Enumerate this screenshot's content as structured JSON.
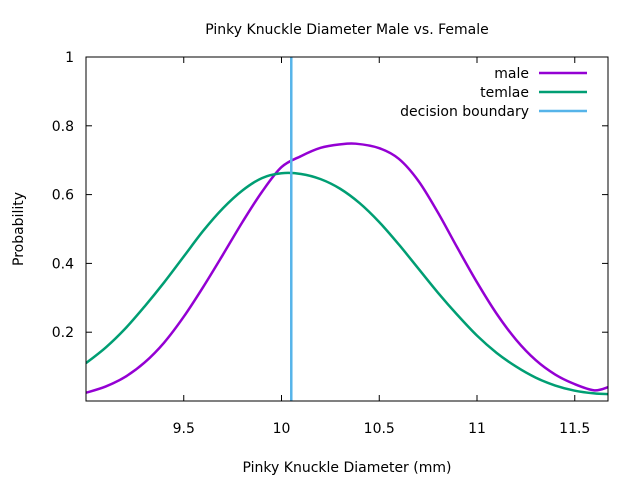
{
  "chart_data": {
    "type": "line",
    "title": "Pinky Knuckle Diameter Male vs. Female",
    "xlabel": "Pinky Knuckle Diameter (mm)",
    "ylabel": "Probability",
    "xlim": [
      9.0,
      11.67
    ],
    "ylim": [
      0,
      1
    ],
    "xticks": [
      9.5,
      10,
      10.5,
      11,
      11.5
    ],
    "xtick_labels": [
      "9.5",
      "10",
      "10.5",
      "11",
      "11.5"
    ],
    "yticks": [
      0.2,
      0.4,
      0.6,
      0.8,
      1
    ],
    "ytick_labels": [
      "0.2",
      "0.4",
      "0.6",
      "0.8",
      "1"
    ],
    "grid": false,
    "legend_position": "top-right",
    "series": [
      {
        "name": "male",
        "color": "#9400d3",
        "x": [
          9.0,
          9.1,
          9.2,
          9.3,
          9.4,
          9.5,
          9.6,
          9.7,
          9.8,
          9.9,
          10.0,
          10.1,
          10.2,
          10.3,
          10.38,
          10.5,
          10.6,
          10.7,
          10.8,
          10.9,
          11.0,
          11.1,
          11.2,
          11.3,
          11.4,
          11.5,
          11.6,
          11.67
        ],
        "y": [
          0.024,
          0.042,
          0.07,
          0.112,
          0.17,
          0.245,
          0.332,
          0.425,
          0.52,
          0.608,
          0.68,
          0.712,
          0.736,
          0.746,
          0.748,
          0.735,
          0.704,
          0.64,
          0.548,
          0.445,
          0.345,
          0.254,
          0.178,
          0.119,
          0.077,
          0.049,
          0.031,
          0.04
        ]
      },
      {
        "name": "temlae",
        "color": "#009e73",
        "x": [
          9.0,
          9.1,
          9.2,
          9.3,
          9.4,
          9.5,
          9.6,
          9.7,
          9.8,
          9.9,
          10.0,
          10.1,
          10.2,
          10.3,
          10.4,
          10.5,
          10.6,
          10.7,
          10.8,
          10.9,
          11.0,
          11.1,
          11.2,
          11.3,
          11.4,
          11.5,
          11.6,
          11.67
        ],
        "y": [
          0.11,
          0.155,
          0.21,
          0.275,
          0.345,
          0.42,
          0.495,
          0.56,
          0.612,
          0.648,
          0.662,
          0.66,
          0.645,
          0.617,
          0.575,
          0.52,
          0.455,
          0.385,
          0.315,
          0.25,
          0.19,
          0.14,
          0.1,
          0.068,
          0.045,
          0.03,
          0.022,
          0.02
        ]
      },
      {
        "name": "decision boundary",
        "color": "#56b4e9",
        "x": [
          10.05,
          10.05
        ],
        "y": [
          0,
          1
        ]
      }
    ]
  }
}
